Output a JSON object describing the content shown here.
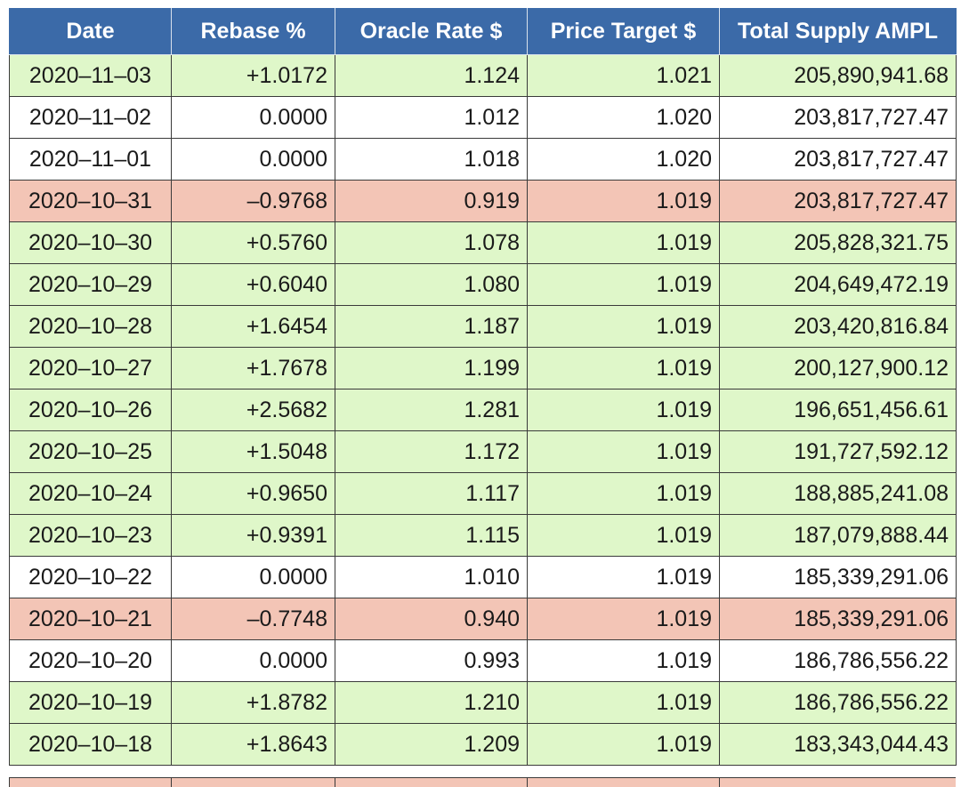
{
  "table": {
    "headers": [
      "Date",
      "Rebase %",
      "Oracle Rate $",
      "Price Target $",
      "Total Supply AMPL"
    ],
    "rows": [
      {
        "date": "2020–11–03",
        "rebase": "+1.0172",
        "oracle": "1.124",
        "target": "1.021",
        "supply": "205,890,941.68",
        "trend": "up"
      },
      {
        "date": "2020–11–02",
        "rebase": "0.0000",
        "oracle": "1.012",
        "target": "1.020",
        "supply": "203,817,727.47",
        "trend": "flat"
      },
      {
        "date": "2020–11–01",
        "rebase": "0.0000",
        "oracle": "1.018",
        "target": "1.020",
        "supply": "203,817,727.47",
        "trend": "flat"
      },
      {
        "date": "2020–10–31",
        "rebase": "–0.9768",
        "oracle": "0.919",
        "target": "1.019",
        "supply": "203,817,727.47",
        "trend": "down"
      },
      {
        "date": "2020–10–30",
        "rebase": "+0.5760",
        "oracle": "1.078",
        "target": "1.019",
        "supply": "205,828,321.75",
        "trend": "up"
      },
      {
        "date": "2020–10–29",
        "rebase": "+0.6040",
        "oracle": "1.080",
        "target": "1.019",
        "supply": "204,649,472.19",
        "trend": "up"
      },
      {
        "date": "2020–10–28",
        "rebase": "+1.6454",
        "oracle": "1.187",
        "target": "1.019",
        "supply": "203,420,816.84",
        "trend": "up"
      },
      {
        "date": "2020–10–27",
        "rebase": "+1.7678",
        "oracle": "1.199",
        "target": "1.019",
        "supply": "200,127,900.12",
        "trend": "up"
      },
      {
        "date": "2020–10–26",
        "rebase": "+2.5682",
        "oracle": "1.281",
        "target": "1.019",
        "supply": "196,651,456.61",
        "trend": "up"
      },
      {
        "date": "2020–10–25",
        "rebase": "+1.5048",
        "oracle": "1.172",
        "target": "1.019",
        "supply": "191,727,592.12",
        "trend": "up"
      },
      {
        "date": "2020–10–24",
        "rebase": "+0.9650",
        "oracle": "1.117",
        "target": "1.019",
        "supply": "188,885,241.08",
        "trend": "up"
      },
      {
        "date": "2020–10–23",
        "rebase": "+0.9391",
        "oracle": "1.115",
        "target": "1.019",
        "supply": "187,079,888.44",
        "trend": "up"
      },
      {
        "date": "2020–10–22",
        "rebase": "0.0000",
        "oracle": "1.010",
        "target": "1.019",
        "supply": "185,339,291.06",
        "trend": "flat"
      },
      {
        "date": "2020–10–21",
        "rebase": "–0.7748",
        "oracle": "0.940",
        "target": "1.019",
        "supply": "185,339,291.06",
        "trend": "down"
      },
      {
        "date": "2020–10–20",
        "rebase": "0.0000",
        "oracle": "0.993",
        "target": "1.019",
        "supply": "186,786,556.22",
        "trend": "flat"
      },
      {
        "date": "2020–10–19",
        "rebase": "+1.8782",
        "oracle": "1.210",
        "target": "1.019",
        "supply": "186,786,556.22",
        "trend": "up"
      },
      {
        "date": "2020–10–18",
        "rebase": "+1.8643",
        "oracle": "1.209",
        "target": "1.019",
        "supply": "183,343,044.43",
        "trend": "up"
      }
    ],
    "colors": {
      "header": "#3b6aa8",
      "up": "#dff7c9",
      "down": "#f3c5b6",
      "flat": "#ffffff"
    }
  }
}
